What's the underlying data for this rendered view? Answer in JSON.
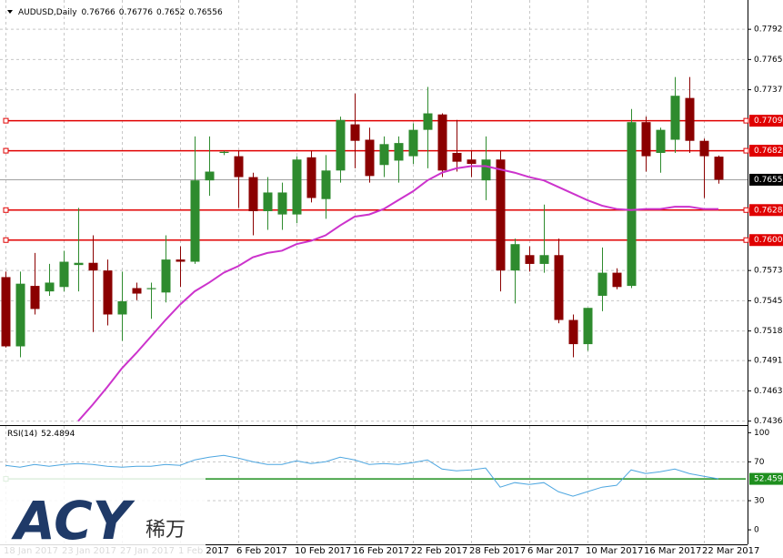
{
  "chart_data": {
    "type": "candlestick",
    "symbol": "AUDUSD,Daily",
    "categories": [
      "18 Jan 2017",
      null,
      null,
      null,
      "23 Jan 2017",
      null,
      null,
      null,
      "27 Jan 2017",
      null,
      null,
      null,
      "1 Feb 2017",
      null,
      null,
      null,
      "6 Feb 2017",
      null,
      null,
      null,
      "10 Feb 2017",
      null,
      null,
      null,
      "16 Feb 2017",
      null,
      null,
      null,
      "22 Feb 2017",
      null,
      null,
      null,
      "28 Feb 2017",
      null,
      null,
      null,
      "6 Mar 2017",
      null,
      null,
      null,
      "10 Mar 2017",
      null,
      null,
      null,
      "16 Mar 2017",
      null,
      null,
      null,
      "22 Mar 2017",
      null
    ],
    "open": [
      0.7567,
      0.7504,
      0.7559,
      0.7554,
      0.7558,
      0.7578,
      0.758,
      0.7573,
      0.7533,
      0.7557,
      0.7556,
      0.7553,
      0.7583,
      0.7581,
      0.7655,
      0.768,
      0.7677,
      0.7658,
      0.7627,
      0.7624,
      0.7624,
      0.7676,
      0.7638,
      0.7664,
      0.7706,
      0.7692,
      0.7669,
      0.7673,
      0.7677,
      0.7701,
      0.7715,
      0.768,
      0.7674,
      0.7655,
      0.7674,
      0.7573,
      0.7587,
      0.7579,
      0.7587,
      0.7528,
      0.7506,
      0.755,
      0.7571,
      0.7559,
      0.7708,
      0.768,
      0.7692,
      0.773,
      0.7691,
      0.76766
    ],
    "high": [
      0.7572,
      0.7572,
      0.7589,
      0.7579,
      0.7591,
      0.763,
      0.7605,
      0.7583,
      0.7572,
      0.7562,
      0.7562,
      0.7605,
      0.7595,
      0.7695,
      0.7695,
      0.7682,
      0.7682,
      0.7662,
      0.7658,
      0.7653,
      0.7677,
      0.7682,
      0.7678,
      0.7713,
      0.7734,
      0.7703,
      0.7695,
      0.7695,
      0.7707,
      0.774,
      0.7716,
      0.771,
      0.7682,
      0.7695,
      0.7682,
      0.7602,
      0.7595,
      0.7633,
      0.7602,
      0.7533,
      0.7539,
      0.7594,
      0.7575,
      0.772,
      0.7713,
      0.7703,
      0.7749,
      0.7749,
      0.7693,
      0.76776
    ],
    "low": [
      0.7503,
      0.7494,
      0.7533,
      0.755,
      0.7554,
      0.7554,
      0.7517,
      0.7523,
      0.7509,
      0.7546,
      0.7529,
      0.7544,
      0.7558,
      0.7579,
      0.7641,
      0.7678,
      0.763,
      0.7605,
      0.761,
      0.761,
      0.7616,
      0.7635,
      0.762,
      0.7653,
      0.7666,
      0.7653,
      0.7658,
      0.7653,
      0.767,
      0.7666,
      0.7658,
      0.7663,
      0.7658,
      0.7637,
      0.7554,
      0.7543,
      0.7572,
      0.7571,
      0.7525,
      0.7494,
      0.75,
      0.7536,
      0.7556,
      0.7557,
      0.7663,
      0.7662,
      0.768,
      0.768,
      0.7639,
      0.7652
    ],
    "close": [
      0.7504,
      0.7561,
      0.7538,
      0.7562,
      0.7581,
      0.758,
      0.7573,
      0.7533,
      0.7545,
      0.7552,
      0.7557,
      0.7583,
      0.7581,
      0.7655,
      0.7663,
      0.7681,
      0.7658,
      0.7627,
      0.7644,
      0.7644,
      0.7674,
      0.7639,
      0.7664,
      0.771,
      0.7691,
      0.7659,
      0.7688,
      0.7689,
      0.7701,
      0.7716,
      0.7664,
      0.7672,
      0.767,
      0.7674,
      0.7573,
      0.7597,
      0.7579,
      0.7587,
      0.7528,
      0.7506,
      0.7539,
      0.7571,
      0.7558,
      0.7708,
      0.7677,
      0.7701,
      0.7732,
      0.7691,
      0.7677,
      0.76556
    ],
    "up_color": "#2e8b2e",
    "down_color": "#8b0000",
    "moving_average": {
      "color": "#cc33cc",
      "values": [
        null,
        null,
        null,
        null,
        null,
        0.7436,
        0.7451,
        0.7467,
        0.7484,
        0.7498,
        0.7513,
        0.7528,
        0.7542,
        0.7554,
        0.7562,
        0.7571,
        0.7577,
        0.7585,
        0.7589,
        0.7591,
        0.7597,
        0.76,
        0.7605,
        0.7614,
        0.7622,
        0.7624,
        0.7629,
        0.7637,
        0.7645,
        0.7655,
        0.7662,
        0.7666,
        0.7668,
        0.7668,
        0.7665,
        0.7662,
        0.7658,
        0.7655,
        0.7649,
        0.7643,
        0.7637,
        0.7632,
        0.7629,
        0.7628,
        0.7629,
        0.7629,
        0.7631,
        0.7631,
        0.7629,
        0.7629
      ]
    },
    "ylim": [
      0.7434,
      0.7815
    ],
    "yticks": [
      0.77925,
      {
        "value": 0.7765,
        "label": "0.77650"
      },
      0.77375,
      {
        "value": 0.7573,
        "label": "0.75730"
      },
      0.75455,
      {
        "value": 0.7518,
        "label": "0.75180"
      },
      {
        "value": 0.7491,
        "label": "0.74910"
      },
      0.74635,
      {
        "value": 0.7436,
        "label": "0.74360"
      }
    ],
    "levels": [
      0.77093,
      {
        "value": 0.7682,
        "label": "0.76820"
      },
      {
        "value": 0.7628,
        "label": "0.76280"
      },
      0.76007
    ],
    "level_color": "#e00000",
    "last_price": 0.76556,
    "grid": true,
    "rsi": {
      "title": "RSI(14)",
      "color": "#4da6e0",
      "values": [
        66.4,
        64.5,
        67.3,
        65.4,
        67.3,
        68.2,
        67.3,
        65.4,
        64.5,
        65.4,
        65.4,
        67.3,
        66.4,
        72.0,
        74.8,
        76.6,
        73.8,
        70.1,
        67.3,
        67.3,
        71.0,
        68.2,
        70.1,
        74.8,
        72.0,
        67.3,
        68.2,
        67.3,
        69.2,
        72.0,
        62.6,
        60.7,
        61.7,
        63.6,
        43.9,
        48.6,
        46.7,
        48.6,
        39.3,
        34.6,
        39.3,
        43.9,
        45.8,
        61.7,
        57.9,
        59.8,
        62.6,
        57.9,
        55.1,
        52.4894
      ],
      "ylim": [
        -14,
        105
      ],
      "yticks": [
        100,
        70,
        30,
        0
      ],
      "level": {
        "value": 52.459,
        "label": "52.4590"
      },
      "level_color": "#1e8f1e"
    }
  },
  "logo": {
    "brand": "ACY",
    "chinese": "稀万"
  }
}
